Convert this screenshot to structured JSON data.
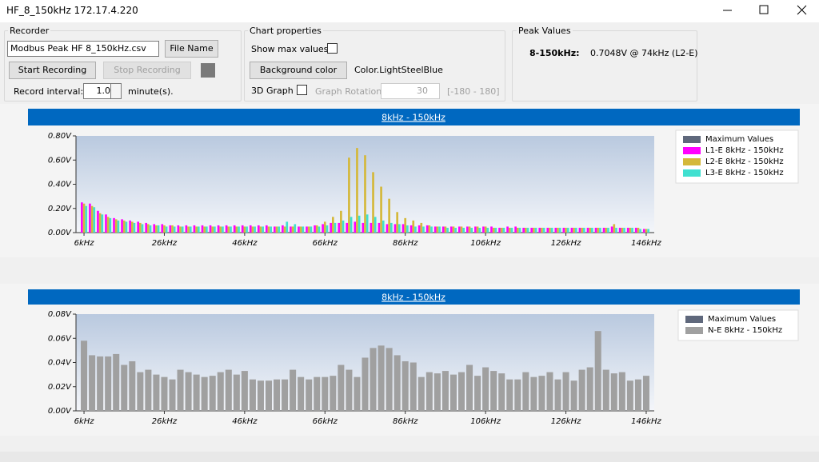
{
  "window": {
    "title": "HF_8_150kHz 172.17.4.220"
  },
  "recorder": {
    "title": "Recorder",
    "file_name": "Modbus Peak HF 8_150kHz.csv",
    "file_button": "File Name",
    "start": "Start Recording",
    "stop": "Stop Recording",
    "interval_label": "Record interval:",
    "interval_value": "1.0",
    "interval_unit": "minute(s)."
  },
  "chart_properties": {
    "title": "Chart properties",
    "show_max": "Show max values",
    "background_button": "Background color",
    "background_value": "Color.LightSteelBlue",
    "graph_3d": "3D Graph",
    "rotation_label": "Graph Rotation:",
    "rotation_value": "30",
    "rotation_range": "[-180 - 180]"
  },
  "peak_values": {
    "title": "Peak Values",
    "label": "8-150kHz:",
    "value": "0.7048V @ 74kHz (L2-E)"
  },
  "chart_data": [
    {
      "type": "bar",
      "title": "8kHz - 150kHz",
      "x": [
        6,
        8,
        10,
        12,
        14,
        16,
        18,
        20,
        22,
        24,
        26,
        28,
        30,
        32,
        34,
        36,
        38,
        40,
        42,
        44,
        46,
        48,
        50,
        52,
        54,
        56,
        58,
        60,
        62,
        64,
        66,
        68,
        70,
        72,
        74,
        76,
        78,
        80,
        82,
        84,
        86,
        88,
        90,
        92,
        94,
        96,
        98,
        100,
        102,
        104,
        106,
        108,
        110,
        112,
        114,
        116,
        118,
        120,
        122,
        124,
        126,
        128,
        130,
        132,
        134,
        136,
        138,
        140,
        142,
        144,
        146
      ],
      "series": [
        {
          "name": "Maximum Values",
          "color": "#5f687c",
          "values": [
            null,
            null,
            null,
            null,
            null,
            null,
            null,
            null,
            null,
            null,
            null,
            null,
            null,
            null,
            null,
            null,
            null,
            null,
            null,
            null,
            null,
            null,
            null,
            null,
            null,
            null,
            null,
            null,
            null,
            null,
            null,
            null,
            null,
            null,
            null,
            null,
            null,
            null,
            null,
            null,
            null,
            null,
            null,
            null,
            null,
            null,
            null,
            null,
            null,
            null,
            null,
            null,
            null,
            null,
            null,
            null,
            null,
            null,
            null,
            null,
            null,
            null,
            null,
            null,
            null,
            null,
            null,
            null,
            null,
            null,
            null
          ]
        },
        {
          "name": "L1-E 8kHz - 150kHz",
          "color": "#ff00ff",
          "values": [
            0.25,
            0.24,
            0.18,
            0.15,
            0.12,
            0.11,
            0.1,
            0.09,
            0.08,
            0.07,
            0.07,
            0.06,
            0.06,
            0.06,
            0.06,
            0.06,
            0.06,
            0.06,
            0.06,
            0.06,
            0.06,
            0.06,
            0.06,
            0.06,
            0.05,
            0.06,
            0.05,
            0.05,
            0.05,
            0.06,
            0.07,
            0.08,
            0.08,
            0.08,
            0.09,
            0.08,
            0.08,
            0.08,
            0.07,
            0.07,
            0.07,
            0.06,
            0.06,
            0.06,
            0.05,
            0.05,
            0.05,
            0.05,
            0.05,
            0.05,
            0.05,
            0.05,
            0.04,
            0.05,
            0.05,
            0.04,
            0.04,
            0.04,
            0.04,
            0.04,
            0.04,
            0.04,
            0.04,
            0.04,
            0.04,
            0.04,
            0.05,
            0.04,
            0.04,
            0.04,
            0.03
          ]
        },
        {
          "name": "L2-E 8kHz - 150kHz",
          "color": "#d4b83a",
          "values": [
            0.24,
            0.22,
            0.16,
            0.13,
            0.11,
            0.1,
            0.09,
            0.08,
            0.07,
            0.06,
            0.06,
            0.06,
            0.05,
            0.05,
            0.05,
            0.05,
            0.05,
            0.05,
            0.05,
            0.05,
            0.05,
            0.05,
            0.05,
            0.05,
            0.05,
            0.05,
            0.05,
            0.05,
            0.05,
            0.06,
            0.09,
            0.13,
            0.18,
            0.62,
            0.7,
            0.64,
            0.5,
            0.38,
            0.28,
            0.17,
            0.12,
            0.1,
            0.08,
            0.06,
            0.05,
            0.05,
            0.05,
            0.05,
            0.05,
            0.05,
            0.05,
            0.04,
            0.04,
            0.04,
            0.04,
            0.04,
            0.04,
            0.04,
            0.04,
            0.04,
            0.04,
            0.04,
            0.04,
            0.04,
            0.04,
            0.04,
            0.07,
            0.04,
            0.04,
            0.04,
            0.03
          ]
        },
        {
          "name": "L3-E 8kHz - 150kHz",
          "color": "#40e0d0",
          "values": [
            0.22,
            0.21,
            0.15,
            0.12,
            0.1,
            0.09,
            0.08,
            0.07,
            0.06,
            0.06,
            0.05,
            0.05,
            0.05,
            0.05,
            0.05,
            0.05,
            0.05,
            0.05,
            0.05,
            0.05,
            0.05,
            0.05,
            0.05,
            0.05,
            0.05,
            0.09,
            0.07,
            0.05,
            0.05,
            0.05,
            0.06,
            0.08,
            0.1,
            0.13,
            0.14,
            0.15,
            0.13,
            0.1,
            0.08,
            0.07,
            0.06,
            0.05,
            0.05,
            0.05,
            0.05,
            0.04,
            0.04,
            0.04,
            0.04,
            0.04,
            0.04,
            0.04,
            0.04,
            0.04,
            0.04,
            0.04,
            0.04,
            0.04,
            0.04,
            0.04,
            0.04,
            0.04,
            0.04,
            0.04,
            0.04,
            0.04,
            0.04,
            0.04,
            0.04,
            0.03,
            0.03
          ]
        }
      ],
      "xlim": [
        4,
        148
      ],
      "xticks": [
        {
          "value": 6,
          "label": "6kHz"
        },
        {
          "value": 26,
          "label": "26kHz"
        },
        {
          "value": 46,
          "label": "46kHz"
        },
        {
          "value": 66,
          "label": "66kHz"
        },
        {
          "value": 86,
          "label": "86kHz"
        },
        {
          "value": 106,
          "label": "106kHz"
        },
        {
          "value": 126,
          "label": "126kHz"
        },
        {
          "value": 146,
          "label": "146kHz"
        }
      ],
      "ylim": [
        0,
        0.8
      ],
      "yticks": [
        {
          "value": 0,
          "label": "0.00V"
        },
        {
          "value": 0.2,
          "label": "0.20V"
        },
        {
          "value": 0.4,
          "label": "0.40V"
        },
        {
          "value": 0.6,
          "label": "0.60V"
        },
        {
          "value": 0.8,
          "label": "0.80V"
        }
      ],
      "grid": false,
      "legend": "right"
    },
    {
      "type": "bar",
      "title": "8kHz - 150kHz",
      "x": [
        6,
        8,
        10,
        12,
        14,
        16,
        18,
        20,
        22,
        24,
        26,
        28,
        30,
        32,
        34,
        36,
        38,
        40,
        42,
        44,
        46,
        48,
        50,
        52,
        54,
        56,
        58,
        60,
        62,
        64,
        66,
        68,
        70,
        72,
        74,
        76,
        78,
        80,
        82,
        84,
        86,
        88,
        90,
        92,
        94,
        96,
        98,
        100,
        102,
        104,
        106,
        108,
        110,
        112,
        114,
        116,
        118,
        120,
        122,
        124,
        126,
        128,
        130,
        132,
        134,
        136,
        138,
        140,
        142,
        144,
        146
      ],
      "series": [
        {
          "name": "Maximum Values",
          "color": "#5f687c",
          "values": [
            null,
            null,
            null,
            null,
            null,
            null,
            null,
            null,
            null,
            null,
            null,
            null,
            null,
            null,
            null,
            null,
            null,
            null,
            null,
            null,
            null,
            null,
            null,
            null,
            null,
            null,
            null,
            null,
            null,
            null,
            null,
            null,
            null,
            null,
            null,
            null,
            null,
            null,
            null,
            null,
            null,
            null,
            null,
            null,
            null,
            null,
            null,
            null,
            null,
            null,
            null,
            null,
            null,
            null,
            null,
            null,
            null,
            null,
            null,
            null,
            null,
            null,
            null,
            null,
            null,
            null,
            null,
            null,
            null,
            null,
            null
          ]
        },
        {
          "name": "N-E 8kHz - 150kHz",
          "color": "#a0a0a0",
          "values": [
            0.058,
            0.046,
            0.045,
            0.045,
            0.047,
            0.038,
            0.041,
            0.032,
            0.034,
            0.03,
            0.028,
            0.026,
            0.034,
            0.032,
            0.03,
            0.028,
            0.029,
            0.032,
            0.034,
            0.03,
            0.033,
            0.026,
            0.025,
            0.025,
            0.026,
            0.026,
            0.034,
            0.028,
            0.026,
            0.028,
            0.028,
            0.029,
            0.038,
            0.034,
            0.028,
            0.044,
            0.052,
            0.054,
            0.052,
            0.046,
            0.041,
            0.04,
            0.028,
            0.032,
            0.031,
            0.033,
            0.03,
            0.032,
            0.038,
            0.029,
            0.036,
            0.033,
            0.031,
            0.026,
            0.026,
            0.032,
            0.028,
            0.029,
            0.032,
            0.026,
            0.032,
            0.025,
            0.034,
            0.036,
            0.066,
            0.034,
            0.031,
            0.032,
            0.025,
            0.026,
            0.029
          ]
        }
      ],
      "xlim": [
        4,
        148
      ],
      "xticks": [
        {
          "value": 6,
          "label": "6kHz"
        },
        {
          "value": 26,
          "label": "26kHz"
        },
        {
          "value": 46,
          "label": "46kHz"
        },
        {
          "value": 66,
          "label": "66kHz"
        },
        {
          "value": 86,
          "label": "86kHz"
        },
        {
          "value": 106,
          "label": "106kHz"
        },
        {
          "value": 126,
          "label": "126kHz"
        },
        {
          "value": 146,
          "label": "146kHz"
        }
      ],
      "ylim": [
        0,
        0.08
      ],
      "yticks": [
        {
          "value": 0,
          "label": "0.00V"
        },
        {
          "value": 0.02,
          "label": "0.02V"
        },
        {
          "value": 0.04,
          "label": "0.04V"
        },
        {
          "value": 0.06,
          "label": "0.06V"
        },
        {
          "value": 0.08,
          "label": "0.08V"
        }
      ],
      "grid": false,
      "legend": "right"
    }
  ]
}
